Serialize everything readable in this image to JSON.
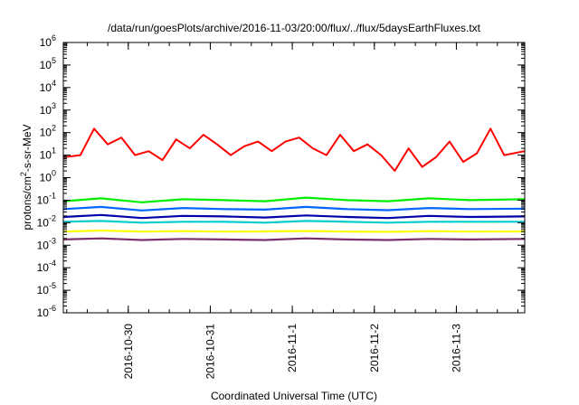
{
  "chart_data": {
    "type": "line",
    "title": "/data/run/goesPlots/archive/2016-11-03/20:00/flux/../flux/5daysEarthFluxes.txt",
    "xlabel": "Coordinated Universal Time (UTC)",
    "ylabel": {
      "base": "protons/cm",
      "sup": "2",
      "rest": "-s-sr-MeV"
    },
    "yscale": "log",
    "ylim": [
      1e-06,
      1000000.0
    ],
    "xlim": [
      "2016-10-29 05:00",
      "2016-11-03 20:00"
    ],
    "y_ticks": [
      {
        "value": 1000000.0,
        "exp": "6"
      },
      {
        "value": 100000.0,
        "exp": "5"
      },
      {
        "value": 10000.0,
        "exp": "4"
      },
      {
        "value": 1000.0,
        "exp": "3"
      },
      {
        "value": 100.0,
        "exp": "2"
      },
      {
        "value": 10.0,
        "exp": "1"
      },
      {
        "value": 1,
        "exp": "0"
      },
      {
        "value": 0.1,
        "exp": "-1"
      },
      {
        "value": 0.01,
        "exp": "-2"
      },
      {
        "value": 0.001,
        "exp": "-3"
      },
      {
        "value": 0.0001,
        "exp": "-4"
      },
      {
        "value": 1e-05,
        "exp": "-5"
      },
      {
        "value": 1e-06,
        "exp": "-6"
      }
    ],
    "y_tick_base": "10",
    "x_ticks": [
      "2016-10-30",
      "2016-10-31",
      "2016-11-1",
      "2016-11-2",
      "2016-11-3"
    ],
    "grid": false,
    "legend": "none",
    "series": [
      {
        "color": "#ff0000",
        "x": [
          "2016-10-29 05:00",
          "2016-10-29 10:00",
          "2016-10-29 14:00",
          "2016-10-29 18:00",
          "2016-10-29 22:00",
          "2016-10-30 02:00",
          "2016-10-30 06:00",
          "2016-10-30 10:00",
          "2016-10-30 14:00",
          "2016-10-30 18:00",
          "2016-10-30 22:00",
          "2016-10-31 02:00",
          "2016-10-31 06:00",
          "2016-10-31 10:00",
          "2016-10-31 14:00",
          "2016-10-31 18:00",
          "2016-10-31 22:00",
          "2016-11-01 02:00",
          "2016-11-01 06:00",
          "2016-11-01 10:00",
          "2016-11-01 14:00",
          "2016-11-01 18:00",
          "2016-11-01 22:00",
          "2016-11-02 02:00",
          "2016-11-02 06:00",
          "2016-11-02 10:00",
          "2016-11-02 14:00",
          "2016-11-02 18:00",
          "2016-11-02 22:00",
          "2016-11-03 02:00",
          "2016-11-03 06:00",
          "2016-11-03 10:00",
          "2016-11-03 14:00",
          "2016-11-03 20:00"
        ],
        "y": [
          8,
          10,
          150,
          30,
          60,
          10,
          15,
          6,
          50,
          20,
          80,
          30,
          10,
          25,
          40,
          15,
          40,
          60,
          20,
          10,
          80,
          15,
          30,
          10,
          2,
          20,
          3,
          8,
          40,
          5,
          12,
          150,
          10,
          15
        ]
      },
      {
        "color": "#00ee00",
        "x": [
          "2016-10-29 05:00",
          "2016-10-29 16:00",
          "2016-10-30 04:00",
          "2016-10-30 16:00",
          "2016-10-31 04:00",
          "2016-10-31 16:00",
          "2016-11-01 04:00",
          "2016-11-01 16:00",
          "2016-11-02 04:00",
          "2016-11-02 16:00",
          "2016-11-03 04:00",
          "2016-11-03 20:00"
        ],
        "y": [
          0.09,
          0.12,
          0.08,
          0.11,
          0.1,
          0.09,
          0.13,
          0.1,
          0.09,
          0.12,
          0.1,
          0.11
        ]
      },
      {
        "color": "#0066ff",
        "x": [
          "2016-10-29 05:00",
          "2016-10-29 16:00",
          "2016-10-30 04:00",
          "2016-10-30 16:00",
          "2016-10-31 04:00",
          "2016-10-31 16:00",
          "2016-11-01 04:00",
          "2016-11-01 16:00",
          "2016-11-02 04:00",
          "2016-11-02 16:00",
          "2016-11-03 04:00",
          "2016-11-03 20:00"
        ],
        "y": [
          0.04,
          0.05,
          0.035,
          0.045,
          0.04,
          0.038,
          0.05,
          0.04,
          0.036,
          0.045,
          0.04,
          0.042
        ]
      },
      {
        "color": "#0000aa",
        "x": [
          "2016-10-29 05:00",
          "2016-10-29 16:00",
          "2016-10-30 04:00",
          "2016-10-30 16:00",
          "2016-10-31 04:00",
          "2016-10-31 16:00",
          "2016-11-01 04:00",
          "2016-11-01 16:00",
          "2016-11-02 04:00",
          "2016-11-02 16:00",
          "2016-11-03 04:00",
          "2016-11-03 20:00"
        ],
        "y": [
          0.018,
          0.022,
          0.016,
          0.02,
          0.019,
          0.017,
          0.021,
          0.018,
          0.016,
          0.02,
          0.018,
          0.019
        ]
      },
      {
        "color": "#00cccc",
        "x": [
          "2016-10-29 05:00",
          "2016-10-29 16:00",
          "2016-10-30 04:00",
          "2016-10-30 16:00",
          "2016-10-31 04:00",
          "2016-10-31 16:00",
          "2016-11-01 04:00",
          "2016-11-01 16:00",
          "2016-11-02 04:00",
          "2016-11-02 16:00",
          "2016-11-03 04:00",
          "2016-11-03 20:00"
        ],
        "y": [
          0.011,
          0.012,
          0.01,
          0.011,
          0.011,
          0.01,
          0.012,
          0.011,
          0.01,
          0.011,
          0.011,
          0.011
        ]
      },
      {
        "color": "#ffff00",
        "x": [
          "2016-10-29 05:00",
          "2016-10-29 16:00",
          "2016-10-30 04:00",
          "2016-10-30 16:00",
          "2016-10-31 04:00",
          "2016-10-31 16:00",
          "2016-11-01 04:00",
          "2016-11-01 16:00",
          "2016-11-02 04:00",
          "2016-11-02 16:00",
          "2016-11-03 04:00",
          "2016-11-03 20:00"
        ],
        "y": [
          0.004,
          0.0045,
          0.004,
          0.0042,
          0.004,
          0.0041,
          0.0043,
          0.004,
          0.0039,
          0.0042,
          0.004,
          0.0041
        ]
      },
      {
        "color": "#7b2d6e",
        "x": [
          "2016-10-29 05:00",
          "2016-10-29 16:00",
          "2016-10-30 04:00",
          "2016-10-30 16:00",
          "2016-10-31 04:00",
          "2016-10-31 16:00",
          "2016-11-01 04:00",
          "2016-11-01 16:00",
          "2016-11-02 04:00",
          "2016-11-02 16:00",
          "2016-11-03 04:00",
          "2016-11-03 20:00"
        ],
        "y": [
          0.0018,
          0.002,
          0.0017,
          0.0019,
          0.0018,
          0.0017,
          0.002,
          0.0018,
          0.0017,
          0.0019,
          0.0018,
          0.0019
        ]
      }
    ]
  }
}
